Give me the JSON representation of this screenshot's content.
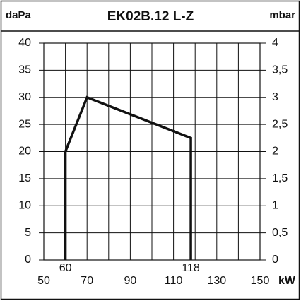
{
  "chart_data": {
    "type": "line",
    "title": "EK02B.12 L-Z",
    "ylabel": "daPa",
    "y2label": "mbar",
    "xlabel": "kW",
    "x": [
      60,
      60,
      70,
      118,
      118
    ],
    "values": [
      0,
      20,
      30,
      22.5,
      0
    ],
    "color": "#111111",
    "xlim": [
      50,
      150
    ],
    "xticks": [
      50,
      70,
      90,
      110,
      130,
      150
    ],
    "x_gridlines": [
      50,
      60,
      70,
      80,
      90,
      100,
      110,
      120,
      130,
      140,
      150
    ],
    "ylim": [
      0,
      40
    ],
    "yticks": [
      0,
      5,
      10,
      15,
      20,
      25,
      30,
      35,
      40
    ],
    "y2lim": [
      0,
      4
    ],
    "y2ticks": [
      0,
      {
        "value": 0.5,
        "label": "0,5"
      },
      1,
      {
        "value": 1.5,
        "label": "1,5"
      },
      2,
      {
        "value": 2.5,
        "label": "2,5"
      },
      3,
      {
        "value": 3.5,
        "label": "3,5"
      },
      4
    ],
    "annotations": [
      {
        "text": "60",
        "x": 60
      },
      {
        "text": "118",
        "x": 118
      }
    ],
    "grid": true
  }
}
